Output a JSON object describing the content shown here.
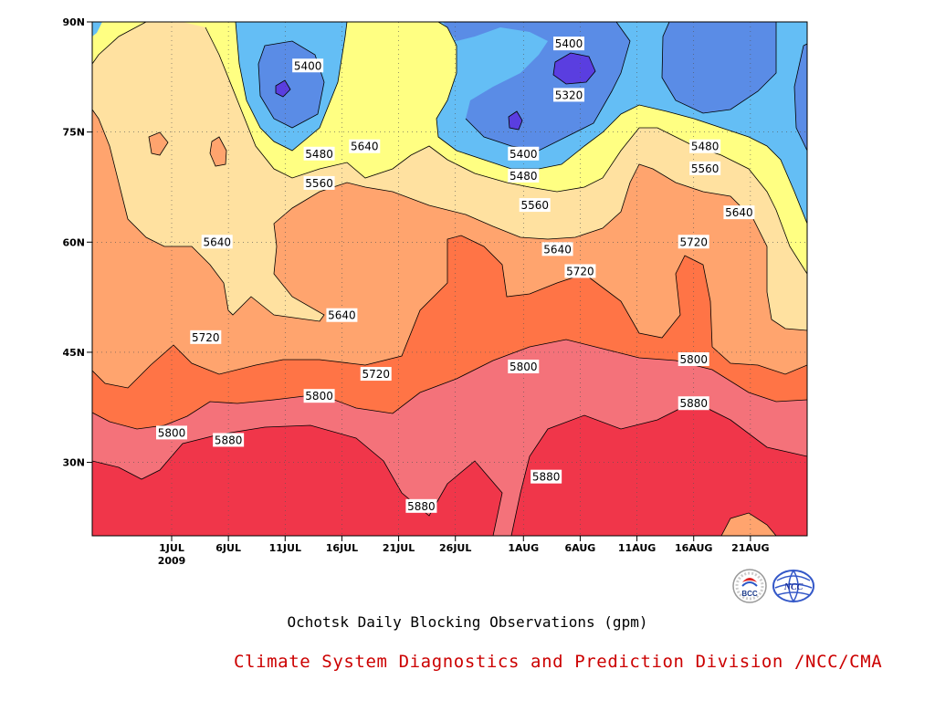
{
  "chart_data": {
    "type": "heatmap",
    "subtype": "filled-contour",
    "title": "Ochotsk Daily Blocking Observations (gpm)",
    "x_axis": {
      "kind": "date",
      "range": [
        "2009-06-24",
        "2009-08-26"
      ],
      "tick_labels": [
        "1JUL",
        "6JUL",
        "11JUL",
        "16JUL",
        "21JUL",
        "26JUL",
        "1AUG",
        "6AUG",
        "11AUG",
        "16AUG",
        "21AUG"
      ],
      "tick_dates": [
        "2009-07-01",
        "2009-07-06",
        "2009-07-11",
        "2009-07-16",
        "2009-07-21",
        "2009-07-26",
        "2009-08-01",
        "2009-08-06",
        "2009-08-11",
        "2009-08-16",
        "2009-08-21"
      ],
      "year_label": "2009"
    },
    "y_axis": {
      "kind": "latitude",
      "range": [
        20,
        90
      ],
      "ticks": [
        30,
        45,
        60,
        75,
        90
      ],
      "tick_labels": [
        "30N",
        "45N",
        "60N",
        "75N",
        "90N"
      ]
    },
    "grid": "dotted",
    "contour_levels": [
      5320,
      5400,
      5480,
      5560,
      5640,
      5720,
      5800,
      5880
    ],
    "fill_colors": [
      "#5a3ee0",
      "#5a8ce6",
      "#64bef5",
      "#ffff82",
      "#ffe1a0",
      "#ffa46e",
      "#ff7446",
      "#f4727a",
      "#f0364a"
    ],
    "contour_labels": [
      {
        "text": "5400",
        "date": "2009-07-13",
        "lat": 84
      },
      {
        "text": "5480",
        "date": "2009-07-14",
        "lat": 72
      },
      {
        "text": "5560",
        "date": "2009-07-14",
        "lat": 68
      },
      {
        "text": "5640",
        "date": "2009-07-18",
        "lat": 73
      },
      {
        "text": "5400",
        "date": "2009-08-05",
        "lat": 87
      },
      {
        "text": "5320",
        "date": "2009-08-05",
        "lat": 80
      },
      {
        "text": "5400",
        "date": "2009-08-01",
        "lat": 72
      },
      {
        "text": "5480",
        "date": "2009-08-01",
        "lat": 69
      },
      {
        "text": "5560",
        "date": "2009-08-02",
        "lat": 65
      },
      {
        "text": "5480",
        "date": "2009-08-17",
        "lat": 73
      },
      {
        "text": "5560",
        "date": "2009-08-17",
        "lat": 70
      },
      {
        "text": "5640",
        "date": "2009-08-20",
        "lat": 64
      },
      {
        "text": "5640",
        "date": "2009-07-05",
        "lat": 60
      },
      {
        "text": "5640",
        "date": "2009-08-04",
        "lat": 59
      },
      {
        "text": "5720",
        "date": "2009-08-16",
        "lat": 60
      },
      {
        "text": "5720",
        "date": "2009-08-06",
        "lat": 56
      },
      {
        "text": "5640",
        "date": "2009-07-16",
        "lat": 50
      },
      {
        "text": "5720",
        "date": "2009-07-04",
        "lat": 47
      },
      {
        "text": "5720",
        "date": "2009-07-19",
        "lat": 42
      },
      {
        "text": "5800",
        "date": "2009-08-01",
        "lat": 43
      },
      {
        "text": "5800",
        "date": "2009-08-16",
        "lat": 44
      },
      {
        "text": "5800",
        "date": "2009-07-14",
        "lat": 39
      },
      {
        "text": "5880",
        "date": "2009-08-16",
        "lat": 38
      },
      {
        "text": "5800",
        "date": "2009-07-01",
        "lat": 34
      },
      {
        "text": "5880",
        "date": "2009-07-06",
        "lat": 33
      },
      {
        "text": "5880",
        "date": "2009-08-03",
        "lat": 28
      },
      {
        "text": "5880",
        "date": "2009-07-23",
        "lat": 24
      }
    ]
  },
  "caption": {
    "title": "Ochotsk Daily Blocking Observations (gpm)",
    "credit": "Climate System Diagnostics and Prediction Division /NCC/CMA"
  },
  "logos": {
    "bcc_text": "BCC",
    "ncc_text": "NCC"
  }
}
